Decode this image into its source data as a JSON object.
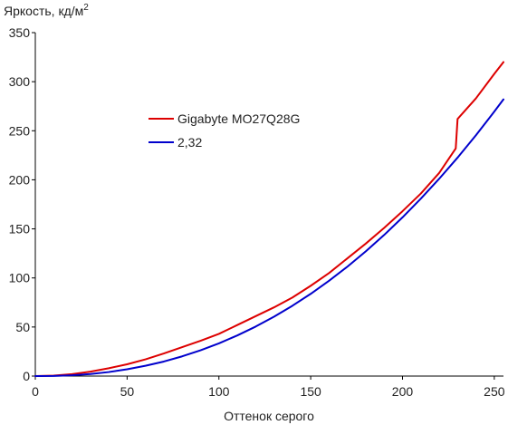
{
  "chart_data": {
    "type": "line",
    "title": "",
    "ylabel": "Яркость, кд/м",
    "ylabel_superscript": "2",
    "xlabel": "Оттенок серого",
    "xlim": [
      0,
      255
    ],
    "ylim": [
      0,
      350
    ],
    "xticks": [
      0,
      50,
      100,
      150,
      200,
      250
    ],
    "yticks": [
      0,
      50,
      100,
      150,
      200,
      250,
      300,
      350
    ],
    "grid": false,
    "legend_position": "center-left",
    "series": [
      {
        "name": "Gigabyte MO27Q28G",
        "color": "#dd0000",
        "x": [
          0,
          10,
          20,
          30,
          40,
          50,
          60,
          70,
          80,
          90,
          100,
          110,
          120,
          130,
          140,
          150,
          160,
          170,
          180,
          190,
          200,
          210,
          220,
          229,
          230,
          240,
          250,
          255
        ],
        "y": [
          0,
          0.5,
          2,
          4.5,
          8,
          12,
          17,
          23,
          29.5,
          36,
          43,
          52,
          61,
          70,
          80,
          92,
          105,
          120,
          135,
          151,
          168,
          186,
          207,
          232,
          262,
          283,
          308,
          320
        ]
      },
      {
        "name": "2,32",
        "color": "#0000cc",
        "x": [
          0,
          10,
          20,
          30,
          40,
          50,
          60,
          70,
          80,
          90,
          100,
          110,
          120,
          130,
          140,
          150,
          160,
          170,
          180,
          190,
          200,
          210,
          220,
          230,
          240,
          250,
          255
        ],
        "y": [
          0,
          0.1,
          0.8,
          2.1,
          4.1,
          6.9,
          10.5,
          14.8,
          20.1,
          26.3,
          33.3,
          41.4,
          50.4,
          60.5,
          71.6,
          83.8,
          97.1,
          111.5,
          127.1,
          143.8,
          161.7,
          180.8,
          201.1,
          222.6,
          245.4,
          269.5,
          282
        ]
      }
    ]
  }
}
